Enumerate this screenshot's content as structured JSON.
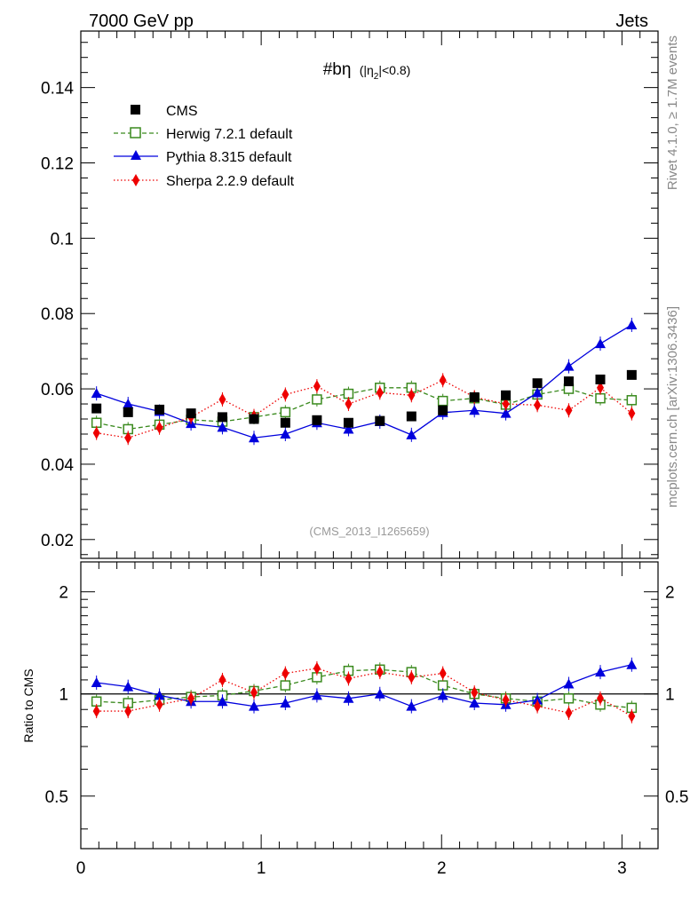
{
  "header": {
    "left_label": "7000 GeV pp",
    "right_label": "Jets",
    "plot_title": "#bη",
    "plot_title_suffix": "(|η",
    "plot_title_sub": "2",
    "plot_title_end": "|<0.8)",
    "watermark": "(CMS_2013_I1265659)",
    "side_label_top": "Rivet 4.1.0, ≥ 1.7M events",
    "side_label_bottom": "mcplots.cern.ch [arXiv:1306.3436]",
    "ratio_ylabel": "Ratio to CMS"
  },
  "colors": {
    "cms": "#000000",
    "herwig": "#3a8a1e",
    "pythia": "#0000dd",
    "sherpa": "#ee0000"
  },
  "chart_data": [
    {
      "type": "line",
      "panel": "main",
      "xlim": [
        0,
        3.2
      ],
      "ylim": [
        0.015,
        0.155
      ],
      "y_ticks": [
        "0.02",
        "0.04",
        "0.06",
        "0.08",
        "0.1",
        "0.12",
        "0.14"
      ],
      "y_tick_values": [
        0.02,
        0.04,
        0.06,
        0.08,
        0.1,
        0.12,
        0.14
      ],
      "x": [
        0.087,
        0.262,
        0.436,
        0.611,
        0.785,
        0.96,
        1.134,
        1.309,
        1.484,
        1.658,
        1.833,
        2.007,
        2.182,
        2.356,
        2.531,
        2.705,
        2.88,
        3.054
      ],
      "series": [
        {
          "name": "CMS",
          "key": "cms",
          "marker": "square",
          "values": [
            0.0548,
            0.0538,
            0.0545,
            0.0535,
            0.0525,
            0.052,
            0.051,
            0.0517,
            0.051,
            0.0515,
            0.0527,
            0.0543,
            0.0578,
            0.0583,
            0.0615,
            0.062,
            0.0625,
            0.0637
          ]
        },
        {
          "name": "Herwig 7.2.1 default",
          "key": "herwig",
          "marker": "open-square",
          "values": [
            0.051,
            0.0493,
            0.0505,
            0.0518,
            0.0513,
            0.0525,
            0.0538,
            0.0572,
            0.0587,
            0.0603,
            0.0603,
            0.0568,
            0.0575,
            0.0558,
            0.0585,
            0.06,
            0.0575,
            0.057
          ]
        },
        {
          "name": "Pythia 8.315 default",
          "key": "pythia",
          "marker": "triangle",
          "values": [
            0.0588,
            0.056,
            0.054,
            0.0508,
            0.0498,
            0.047,
            0.048,
            0.051,
            0.0493,
            0.0513,
            0.0478,
            0.0537,
            0.0543,
            0.0535,
            0.059,
            0.066,
            0.072,
            0.077
          ]
        },
        {
          "name": "Sherpa 2.2.9 default",
          "key": "sherpa",
          "marker": "diamond",
          "values": [
            0.0483,
            0.047,
            0.0497,
            0.0525,
            0.0572,
            0.0528,
            0.0585,
            0.0607,
            0.056,
            0.059,
            0.0583,
            0.0623,
            0.0578,
            0.056,
            0.0557,
            0.0543,
            0.0603,
            0.0535
          ]
        }
      ],
      "legend": [
        "CMS",
        "Herwig 7.2.1 default",
        "Pythia 8.315 default",
        "Sherpa 2.2.9 default"
      ],
      "legend_position": "top-left"
    },
    {
      "type": "line",
      "panel": "ratio",
      "xlim": [
        0,
        3.2
      ],
      "ylim": [
        0.35,
        2.45
      ],
      "y_scale": "log",
      "ylabel": "Ratio to CMS",
      "y_ticks": [
        "0.5",
        "1",
        "2"
      ],
      "y_tick_values": [
        0.5,
        1,
        2
      ],
      "x_ticks": [
        "0",
        "1",
        "2",
        "3"
      ],
      "x_tick_values": [
        0,
        1,
        2,
        3
      ],
      "x": [
        0.087,
        0.262,
        0.436,
        0.611,
        0.785,
        0.96,
        1.134,
        1.309,
        1.484,
        1.658,
        1.833,
        2.007,
        2.182,
        2.356,
        2.531,
        2.705,
        2.88,
        3.054
      ],
      "series": [
        {
          "name": "Herwig 7.2.1 default",
          "key": "herwig",
          "marker": "open-square",
          "values": [
            0.95,
            0.94,
            0.96,
            0.98,
            0.99,
            1.02,
            1.06,
            1.12,
            1.17,
            1.18,
            1.16,
            1.06,
            1.0,
            0.97,
            0.95,
            0.97,
            0.93,
            0.91
          ]
        },
        {
          "name": "Pythia 8.315 default",
          "key": "pythia",
          "marker": "triangle",
          "values": [
            1.08,
            1.05,
            0.99,
            0.95,
            0.95,
            0.92,
            0.94,
            0.99,
            0.97,
            1.0,
            0.92,
            0.99,
            0.94,
            0.93,
            0.96,
            1.07,
            1.16,
            1.22
          ]
        },
        {
          "name": "Sherpa 2.2.9 default",
          "key": "sherpa",
          "marker": "diamond",
          "values": [
            0.89,
            0.89,
            0.93,
            0.97,
            1.1,
            1.01,
            1.15,
            1.19,
            1.11,
            1.16,
            1.12,
            1.15,
            1.01,
            0.96,
            0.92,
            0.88,
            0.97,
            0.86
          ]
        }
      ]
    }
  ]
}
